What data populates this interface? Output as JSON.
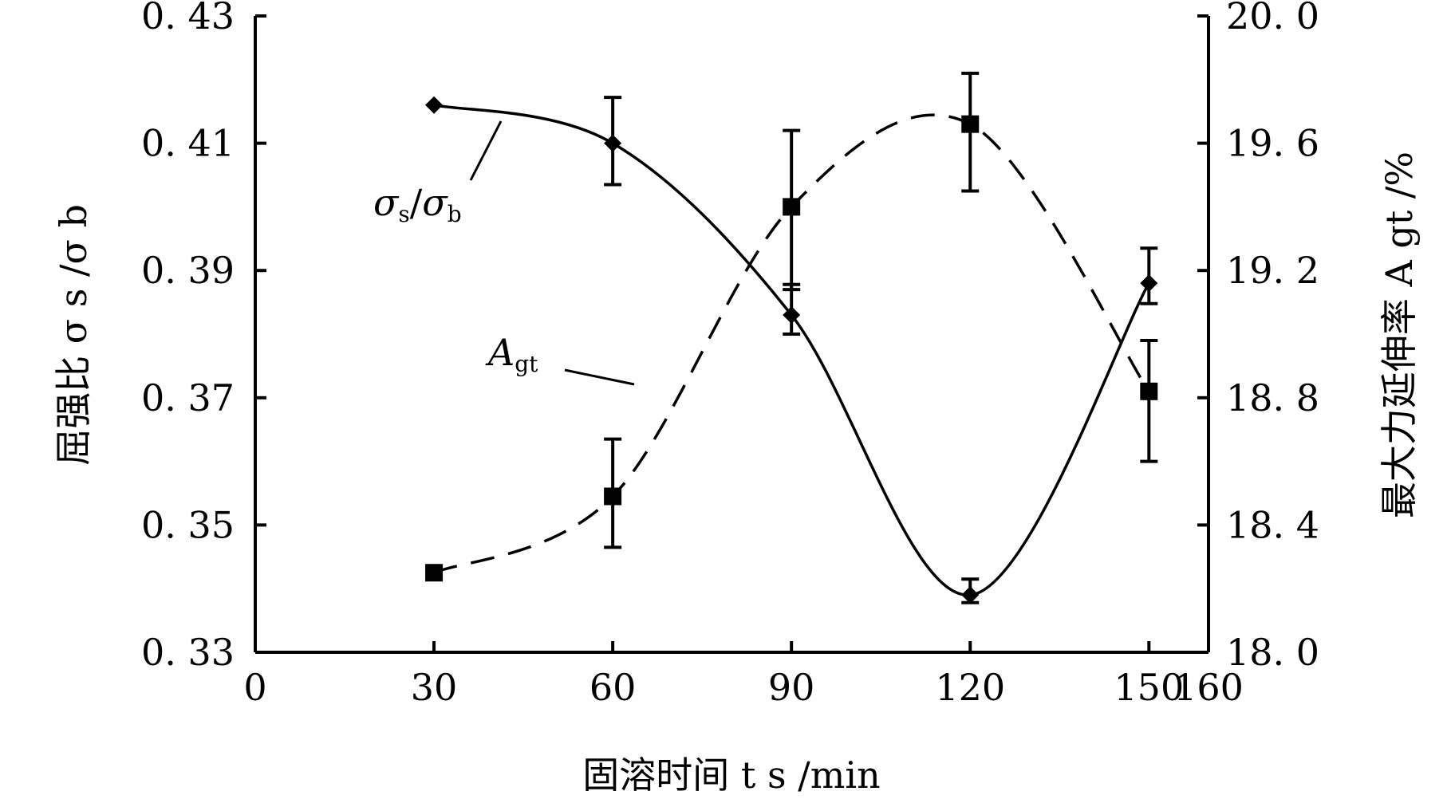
{
  "chart_data": {
    "type": "line",
    "xlabel": "固溶时间 t s /min",
    "ylabel_left": "屈强比 σ s /σ b",
    "ylabel_right": "最大力延伸率 A gt /%",
    "x_axis": {
      "range": [
        0,
        160
      ],
      "ticks": [
        0,
        30,
        60,
        90,
        120,
        150,
        160
      ],
      "tick_labels": [
        "0",
        "30",
        "60",
        "90",
        "120",
        "150",
        "160"
      ]
    },
    "y_left": {
      "range": [
        0.33,
        0.43
      ],
      "ticks": [
        0.33,
        0.35,
        0.37,
        0.39,
        0.41,
        0.43
      ],
      "tick_labels": [
        "0. 33",
        "0. 35",
        "0. 37",
        "0. 39",
        "0. 41",
        "0. 43"
      ]
    },
    "y_right": {
      "range": [
        18.0,
        20.0
      ],
      "ticks": [
        18.0,
        18.4,
        18.8,
        19.2,
        19.6,
        20.0
      ],
      "tick_labels": [
        "18. 0",
        "18. 4",
        "18. 8",
        "19. 2",
        "19. 6",
        "20. 0"
      ]
    },
    "series": [
      {
        "name": "σs/σb",
        "axis": "left",
        "marker": "diamond",
        "line_style": "solid",
        "x": [
          30,
          60,
          90,
          120,
          150
        ],
        "y": [
          0.416,
          0.41,
          0.383,
          0.339,
          0.388
        ],
        "err_low": [
          null,
          0.4035,
          0.38,
          0.3378,
          0.3848
        ],
        "err_high": [
          null,
          0.4172,
          0.3878,
          0.3415,
          0.3935
        ]
      },
      {
        "name": "Agt",
        "axis": "right",
        "marker": "square",
        "line_style": "dashed",
        "x": [
          30,
          60,
          90,
          120,
          150
        ],
        "y": [
          18.25,
          18.49,
          19.4,
          19.66,
          18.82
        ],
        "err_low": [
          null,
          18.33,
          19.14,
          19.45,
          18.6
        ],
        "err_high": [
          null,
          18.67,
          19.64,
          19.82,
          18.98
        ]
      }
    ],
    "annotations": [
      {
        "main": "σ",
        "sub1": "s",
        "slash": "/",
        "main2": "σ",
        "sub2": "b"
      },
      {
        "main": "A",
        "sub1": "gt"
      }
    ],
    "grid": false,
    "legend": "none"
  }
}
